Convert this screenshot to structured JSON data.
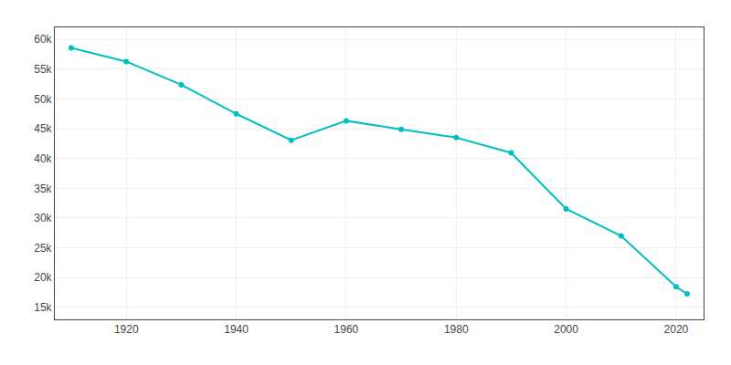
{
  "chart_data": {
    "type": "line",
    "x": [
      1910,
      1920,
      1930,
      1940,
      1950,
      1960,
      1970,
      1980,
      1990,
      2000,
      2010,
      2020,
      2022
    ],
    "values": [
      58547,
      56268,
      52372,
      47491,
      43047,
      46322,
      44900,
      43500,
      40944,
      31542,
      27006,
      18469,
      17272
    ],
    "color": "#00bfbf",
    "marker": "circle",
    "line_style": "solid",
    "xlim": [
      1907,
      2025
    ],
    "ylim": [
      13000,
      62000
    ],
    "xticks": [
      1920,
      1940,
      1960,
      1980,
      2000,
      2020
    ],
    "yticks": [
      {
        "value": 15000,
        "label": "15k"
      },
      {
        "value": 20000,
        "label": "20k"
      },
      {
        "value": 25000,
        "label": "25k"
      },
      {
        "value": 30000,
        "label": "30k"
      },
      {
        "value": 35000,
        "label": "35k"
      },
      {
        "value": 40000,
        "label": "40k"
      },
      {
        "value": 45000,
        "label": "45k"
      },
      {
        "value": 50000,
        "label": "50k"
      },
      {
        "value": 55000,
        "label": "55k"
      },
      {
        "value": 60000,
        "label": "60k"
      }
    ],
    "grid": true
  }
}
